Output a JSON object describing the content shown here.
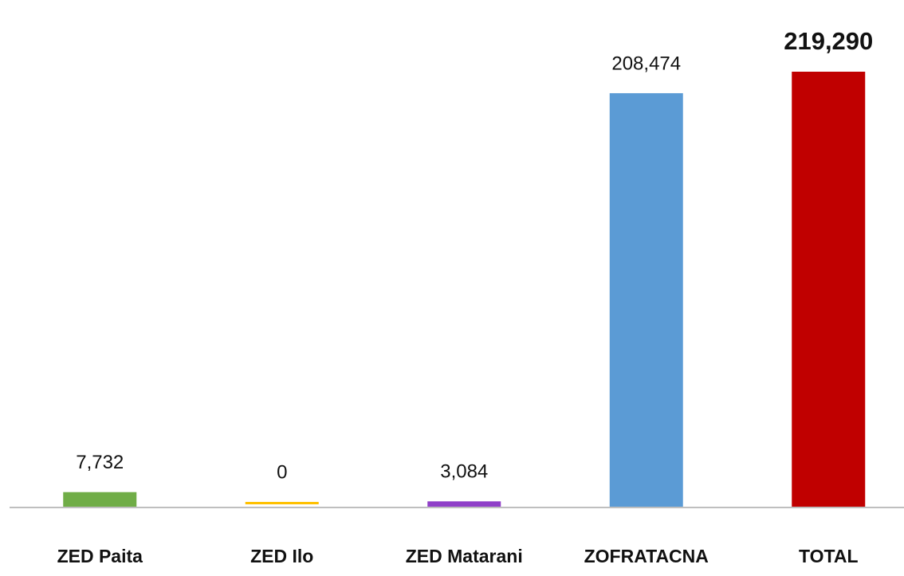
{
  "chart_data": {
    "type": "bar",
    "categories": [
      "ZED Paita",
      "ZED Ilo",
      "ZED Matarani",
      "ZOFRATACNA",
      "TOTAL"
    ],
    "values": [
      7732,
      0,
      3084,
      208474,
      219290
    ],
    "value_labels": [
      "7,732",
      "0",
      "3,084",
      "208,474",
      "219,290"
    ],
    "colors": [
      "#70ad47",
      "#ffc000",
      "#9040c8",
      "#5b9bd5",
      "#c00000"
    ]
  }
}
